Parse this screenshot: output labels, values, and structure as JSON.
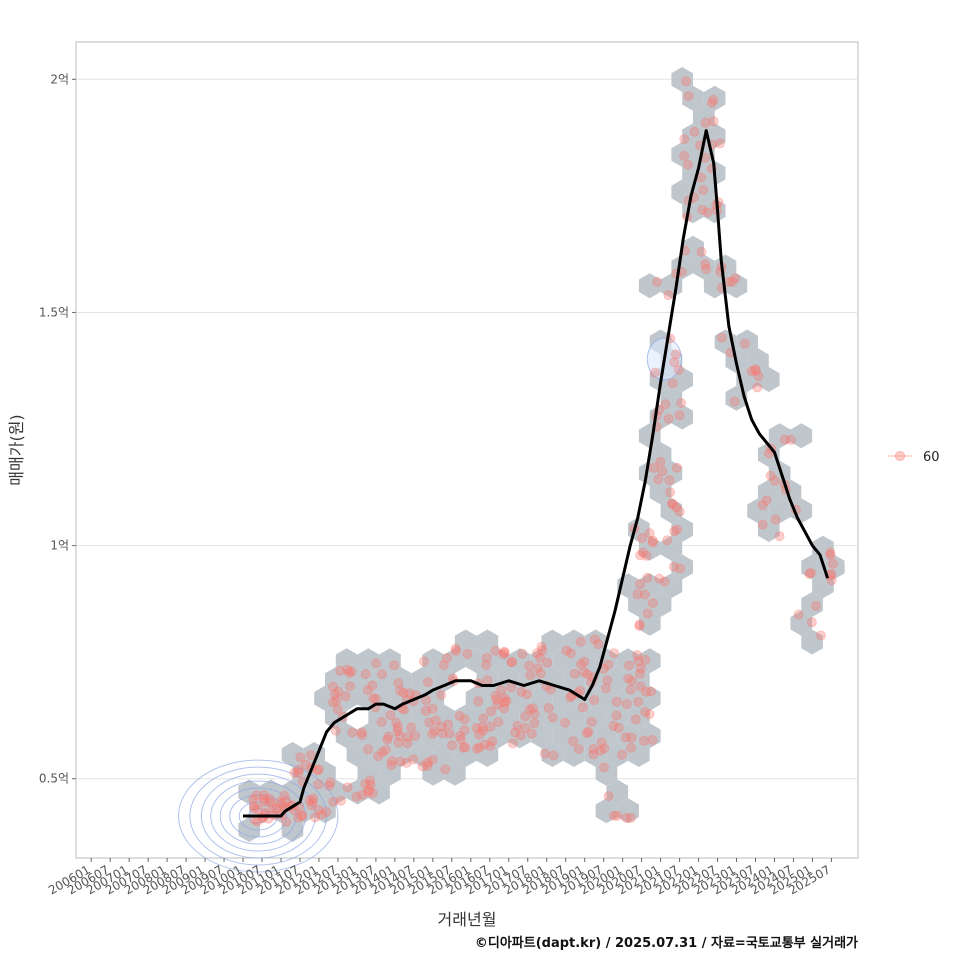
{
  "chart_data": {
    "type": "scatter",
    "title": "",
    "xlabel": "거래년월",
    "ylabel": "매매가(원)",
    "caption": "©디아파트(dapt.kr) / 2025.07.31 / 자료=국토교통부 실거래가",
    "legend": {
      "position": "right",
      "entries": [
        "60"
      ]
    },
    "x_ticks": [
      "200601",
      "200607",
      "200701",
      "200707",
      "200801",
      "200807",
      "200901",
      "200907",
      "201001",
      "201007",
      "201101",
      "201107",
      "201201",
      "201207",
      "201301",
      "201307",
      "201401",
      "201407",
      "201501",
      "201507",
      "201601",
      "201607",
      "201701",
      "201707",
      "201801",
      "201807",
      "201901",
      "201907",
      "202001",
      "202007",
      "202101",
      "202107",
      "202201",
      "202207",
      "202301",
      "202307",
      "202401",
      "202407",
      "202501",
      "202507"
    ],
    "y_ticks": [
      {
        "value": 0.5,
        "label": "0.5억"
      },
      {
        "value": 1.0,
        "label": "1억"
      },
      {
        "value": 1.5,
        "label": "1.5억"
      },
      {
        "value": 2.0,
        "label": "2억"
      }
    ],
    "xlim": [
      2005.6,
      2026.2
    ],
    "ylim": [
      0.33,
      2.08
    ],
    "colors": {
      "points": "#F8766D",
      "hex": "#BCC3C9",
      "trend": "#000000",
      "density": "#8FA8E6",
      "grid": "#E3E3E3",
      "panel_border": "#BBBBBB"
    },
    "trend_line": {
      "name": "moving average",
      "x": [
        2010.0,
        2010.5,
        2011.0,
        2011.1,
        2011.3,
        2011.5,
        2011.6,
        2011.8,
        2012.0,
        2012.2,
        2012.4,
        2012.6,
        2012.8,
        2013.0,
        2013.3,
        2013.5,
        2013.7,
        2014.0,
        2014.2,
        2014.5,
        2014.8,
        2015.0,
        2015.3,
        2015.6,
        2016.0,
        2016.3,
        2016.6,
        2017.0,
        2017.4,
        2017.8,
        2018.2,
        2018.6,
        2019.0,
        2019.2,
        2019.4,
        2019.6,
        2019.8,
        2020.0,
        2020.2,
        2020.4,
        2020.6,
        2020.8,
        2021.0,
        2021.2,
        2021.4,
        2021.6,
        2021.8,
        2022.0,
        2022.2,
        2022.4,
        2022.5,
        2022.6,
        2022.8,
        2023.0,
        2023.2,
        2023.4,
        2023.6,
        2023.8,
        2024.0,
        2024.2,
        2024.4,
        2024.6,
        2024.8,
        2025.0,
        2025.2,
        2025.4
      ],
      "y": [
        0.42,
        0.42,
        0.42,
        0.43,
        0.44,
        0.45,
        0.48,
        0.52,
        0.56,
        0.6,
        0.62,
        0.63,
        0.64,
        0.65,
        0.65,
        0.66,
        0.66,
        0.65,
        0.66,
        0.67,
        0.68,
        0.69,
        0.7,
        0.71,
        0.71,
        0.7,
        0.7,
        0.71,
        0.7,
        0.71,
        0.7,
        0.69,
        0.67,
        0.7,
        0.74,
        0.8,
        0.86,
        0.93,
        1.0,
        1.06,
        1.14,
        1.24,
        1.35,
        1.45,
        1.55,
        1.66,
        1.75,
        1.81,
        1.89,
        1.82,
        1.72,
        1.61,
        1.47,
        1.39,
        1.32,
        1.27,
        1.24,
        1.22,
        1.2,
        1.15,
        1.1,
        1.06,
        1.03,
        1.0,
        0.98,
        0.93
      ]
    },
    "density_level_sets": [
      {
        "name": "cluster-a",
        "center": [
          2010.4,
          0.42
        ],
        "radii_x": [
          0.25,
          0.5,
          0.75,
          1.0,
          1.25,
          1.5,
          1.8,
          2.1
        ],
        "radii_y": [
          0.015,
          0.03,
          0.045,
          0.06,
          0.075,
          0.09,
          0.105,
          0.12
        ]
      },
      {
        "name": "cluster-b",
        "center": [
          2021.1,
          1.4
        ],
        "radii_x": [
          0.45
        ],
        "radii_y": [
          0.045
        ]
      }
    ],
    "point_clusters": [
      {
        "x0": 2010.2,
        "x1": 2011.3,
        "y0": 0.4,
        "y1": 0.47,
        "n": 30
      },
      {
        "x0": 2011.3,
        "x1": 2012.3,
        "y0": 0.41,
        "y1": 0.58,
        "n": 25
      },
      {
        "x0": 2012.3,
        "x1": 2013.5,
        "y0": 0.45,
        "y1": 0.74,
        "n": 35
      },
      {
        "x0": 2013.5,
        "x1": 2015.5,
        "y0": 0.52,
        "y1": 0.76,
        "n": 55
      },
      {
        "x0": 2015.5,
        "x1": 2017.5,
        "y0": 0.56,
        "y1": 0.78,
        "n": 55
      },
      {
        "x0": 2017.5,
        "x1": 2019.3,
        "y0": 0.55,
        "y1": 0.8,
        "n": 45
      },
      {
        "x0": 2019.3,
        "x1": 2020.3,
        "y0": 0.4,
        "y1": 0.79,
        "n": 28
      },
      {
        "x0": 2020.3,
        "x1": 2020.8,
        "y0": 0.58,
        "y1": 1.05,
        "n": 30
      },
      {
        "x0": 2020.8,
        "x1": 2021.6,
        "y0": 0.92,
        "y1": 1.6,
        "n": 35
      },
      {
        "x0": 2021.6,
        "x1": 2022.6,
        "y0": 1.58,
        "y1": 2.0,
        "n": 30
      },
      {
        "x0": 2022.6,
        "x1": 2023.6,
        "y0": 1.22,
        "y1": 1.65,
        "n": 14
      },
      {
        "x0": 2023.6,
        "x1": 2024.6,
        "y0": 1.02,
        "y1": 1.27,
        "n": 14
      },
      {
        "x0": 2024.6,
        "x1": 2025.6,
        "y0": 0.8,
        "y1": 1.02,
        "n": 12
      }
    ]
  }
}
